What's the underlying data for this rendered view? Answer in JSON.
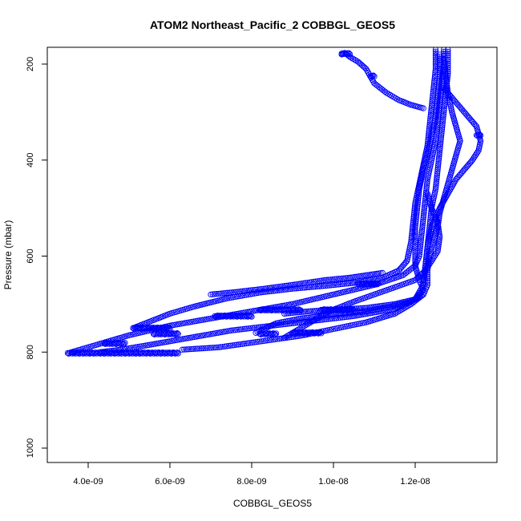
{
  "chart_data": {
    "type": "scatter",
    "title": "ATOM2 Northeast_Pacific_2 COBBGL_GEOS5",
    "xlabel": "COBBGL_GEOS5",
    "ylabel": "Pressure (mbar)",
    "x_ticks": [
      "4.0e-09",
      "6.0e-09",
      "8.0e-09",
      "1.0e-08",
      "1.2e-08"
    ],
    "x_tick_values": [
      4e-09,
      6e-09,
      8e-09,
      1e-08,
      1.2e-08
    ],
    "y_ticks": [
      "200",
      "400",
      "600",
      "800",
      "1000"
    ],
    "y_tick_values": [
      200,
      400,
      600,
      800,
      1000
    ],
    "xlim": [
      3e-09,
      1.4e-08
    ],
    "ylim": [
      1030,
      165
    ],
    "y_axis_inverted": true,
    "marker": "open-circle",
    "series_color": "#0000ff",
    "grid": false,
    "legend": "none",
    "series": [
      {
        "name": "",
        "points": [
          [
            1.27e-08,
            170
          ],
          [
            1.27e-08,
            200
          ],
          [
            1.265e-08,
            240
          ],
          [
            1.26e-08,
            280
          ],
          [
            1.255e-08,
            320
          ],
          [
            1.25e-08,
            360
          ],
          [
            1.24e-08,
            400
          ],
          [
            1.23e-08,
            440
          ],
          [
            1.225e-08,
            480
          ],
          [
            1.22e-08,
            520
          ],
          [
            1.215e-08,
            560
          ],
          [
            1.21e-08,
            600
          ],
          [
            1.2e-08,
            620
          ],
          [
            1.17e-08,
            640
          ],
          [
            1.1e-08,
            660
          ],
          [
            1e-08,
            680
          ],
          [
            9e-09,
            700
          ],
          [
            8e-09,
            715
          ],
          [
            7e-09,
            730
          ],
          [
            6e-09,
            745
          ],
          [
            5e-09,
            765
          ],
          [
            4.2e-09,
            785
          ],
          [
            3.6e-09,
            800
          ]
        ]
      },
      {
        "name": "",
        "points": [
          [
            1.28e-08,
            170
          ],
          [
            1.28e-08,
            220
          ],
          [
            1.275e-08,
            260
          ],
          [
            1.27e-08,
            300
          ],
          [
            1.265e-08,
            340
          ],
          [
            1.26e-08,
            380
          ],
          [
            1.255e-08,
            420
          ],
          [
            1.25e-08,
            460
          ],
          [
            1.24e-08,
            500
          ],
          [
            1.235e-08,
            540
          ],
          [
            1.23e-08,
            580
          ],
          [
            1.225e-08,
            620
          ],
          [
            1.22e-08,
            660
          ],
          [
            1.2e-08,
            690
          ],
          [
            1.15e-08,
            710
          ],
          [
            1.05e-08,
            725
          ],
          [
            9.5e-09,
            735
          ],
          [
            8.5e-09,
            745
          ],
          [
            7.5e-09,
            755
          ],
          [
            6.5e-09,
            770
          ],
          [
            5.5e-09,
            785
          ],
          [
            4.8e-09,
            795
          ],
          [
            4.3e-09,
            800
          ]
        ]
      },
      {
        "name": "",
        "points": [
          [
            1.25e-08,
            170
          ],
          [
            1.25e-08,
            210
          ],
          [
            1.245e-08,
            250
          ],
          [
            1.24e-08,
            290
          ],
          [
            1.235e-08,
            330
          ],
          [
            1.23e-08,
            370
          ],
          [
            1.22e-08,
            410
          ],
          [
            1.21e-08,
            450
          ],
          [
            1.2e-08,
            490
          ],
          [
            1.195e-08,
            530
          ],
          [
            1.19e-08,
            570
          ],
          [
            1.18e-08,
            610
          ],
          [
            1.16e-08,
            630
          ],
          [
            1.12e-08,
            645
          ],
          [
            1.06e-08,
            655
          ],
          [
            9.8e-09,
            662
          ],
          [
            9e-09,
            668
          ],
          [
            8.2e-09,
            676
          ],
          [
            7.4e-09,
            688
          ],
          [
            6.6e-09,
            705
          ],
          [
            6e-09,
            720
          ],
          [
            5.4e-09,
            740
          ],
          [
            5.1e-09,
            750
          ]
        ]
      },
      {
        "name": "",
        "points": [
          [
            1.26e-08,
            180
          ],
          [
            1.26e-08,
            230
          ],
          [
            1.255e-08,
            270
          ],
          [
            1.25e-08,
            310
          ],
          [
            1.24e-08,
            350
          ],
          [
            1.23e-08,
            385
          ],
          [
            1.22e-08,
            420
          ],
          [
            1.21e-08,
            460
          ],
          [
            1.205e-08,
            500
          ],
          [
            1.2e-08,
            540
          ],
          [
            1.2e-08,
            580
          ],
          [
            1.2e-08,
            620
          ],
          [
            1.21e-08,
            650
          ],
          [
            1.22e-08,
            670
          ],
          [
            1.2e-08,
            690
          ],
          [
            1.15e-08,
            700
          ],
          [
            1.08e-08,
            708
          ],
          [
            1e-08,
            712
          ],
          [
            9.4e-09,
            715
          ],
          [
            8.8e-09,
            720
          ]
        ]
      },
      {
        "name": "",
        "points": [
          [
            1.27e-08,
            190
          ],
          [
            1.28e-08,
            260
          ],
          [
            1.29e-08,
            300
          ],
          [
            1.3e-08,
            330
          ],
          [
            1.31e-08,
            360
          ],
          [
            1.3e-08,
            390
          ],
          [
            1.29e-08,
            420
          ],
          [
            1.28e-08,
            450
          ],
          [
            1.27e-08,
            480
          ],
          [
            1.26e-08,
            510
          ],
          [
            1.255e-08,
            540
          ],
          [
            1.245e-08,
            570
          ],
          [
            1.235e-08,
            600
          ],
          [
            1.23e-08,
            630
          ],
          [
            1.23e-08,
            660
          ],
          [
            1.22e-08,
            680
          ],
          [
            1.19e-08,
            695
          ],
          [
            1.14e-08,
            705
          ],
          [
            1.08e-08,
            715
          ],
          [
            1e-08,
            722
          ],
          [
            9.2e-09,
            730
          ],
          [
            8.6e-09,
            740
          ],
          [
            8.1e-09,
            760
          ]
        ]
      },
      {
        "name": "",
        "points": [
          [
            1.27e-08,
            250
          ],
          [
            1.3e-08,
            280
          ],
          [
            1.33e-08,
            310
          ],
          [
            1.35e-08,
            330
          ],
          [
            1.355e-08,
            345
          ],
          [
            1.36e-08,
            360
          ],
          [
            1.355e-08,
            380
          ],
          [
            1.34e-08,
            400
          ],
          [
            1.32e-08,
            420
          ],
          [
            1.3e-08,
            440
          ],
          [
            1.28e-08,
            470
          ],
          [
            1.26e-08,
            500
          ],
          [
            1.24e-08,
            540
          ],
          [
            1.23e-08,
            580
          ],
          [
            1.225e-08,
            620
          ],
          [
            1.22e-08,
            650
          ]
        ]
      },
      {
        "name": "",
        "points": [
          [
            1.02e-08,
            180
          ],
          [
            1.03e-08,
            178
          ],
          [
            1.04e-08,
            185
          ],
          [
            1.06e-08,
            195
          ],
          [
            1.08e-08,
            210
          ],
          [
            1.09e-08,
            225
          ],
          [
            1.1e-08,
            240
          ],
          [
            1.13e-08,
            260
          ],
          [
            1.16e-08,
            275
          ],
          [
            1.19e-08,
            285
          ],
          [
            1.22e-08,
            292
          ]
        ]
      },
      {
        "name": "",
        "points": [
          [
            7e-09,
            680
          ],
          [
            7.6e-09,
            675
          ],
          [
            8.3e-09,
            668
          ],
          [
            9e-09,
            660
          ],
          [
            9.8e-09,
            650
          ],
          [
            1.04e-08,
            645
          ],
          [
            1.08e-08,
            640
          ],
          [
            1.12e-08,
            635
          ]
        ]
      },
      {
        "name": "",
        "points": [
          [
            1.23e-08,
            470
          ],
          [
            1.24e-08,
            500
          ],
          [
            1.255e-08,
            530
          ],
          [
            1.26e-08,
            560
          ],
          [
            1.255e-08,
            590
          ],
          [
            1.24e-08,
            610
          ],
          [
            1.225e-08,
            630
          ],
          [
            1.2e-08,
            650
          ],
          [
            1.15e-08,
            665
          ],
          [
            1.1e-08,
            680
          ],
          [
            1.05e-08,
            695
          ],
          [
            9.9e-09,
            715
          ],
          [
            9.5e-09,
            735
          ],
          [
            9.1e-09,
            755
          ],
          [
            8.8e-09,
            770
          ]
        ]
      },
      {
        "name": "",
        "points": [
          [
            6.3e-09,
            795
          ],
          [
            7.2e-09,
            790
          ],
          [
            8.2e-09,
            778
          ],
          [
            9.2e-09,
            766
          ],
          [
            1e-08,
            752
          ],
          [
            1.08e-08,
            738
          ],
          [
            1.15e-08,
            720
          ],
          [
            1.19e-08,
            700
          ],
          [
            1.22e-08,
            680
          ]
        ]
      }
    ],
    "clusters": [
      {
        "x": [
          3.5e-09,
          6.2e-09
        ],
        "y": 802
      },
      {
        "x": [
          4.4e-09,
          4.9e-09
        ],
        "y": 782
      },
      {
        "x": [
          5.1e-09,
          6e-09
        ],
        "y": 750
      },
      {
        "x": [
          5.6e-09,
          6.2e-09
        ],
        "y": 762
      },
      {
        "x": [
          7.1e-09,
          8e-09
        ],
        "y": 725
      },
      {
        "x": [
          8.2e-09,
          9.2e-09
        ],
        "y": 712
      },
      {
        "x": [
          9.7e-09,
          1.05e-08
        ],
        "y": 712
      },
      {
        "x": [
          9e-09,
          9.7e-09
        ],
        "y": 760
      },
      {
        "x": [
          8.2e-09,
          8.6e-09
        ],
        "y": 762
      },
      {
        "x": [
          1.06e-08,
          1.11e-08
        ],
        "y": 658
      },
      {
        "x": [
          1.02e-08,
          1.04e-08
        ],
        "y": 178
      },
      {
        "x": [
          1.35e-08,
          1.36e-08
        ],
        "y": 348
      },
      {
        "x": [
          1.09e-08,
          1.1e-08
        ],
        "y": 225
      }
    ]
  }
}
